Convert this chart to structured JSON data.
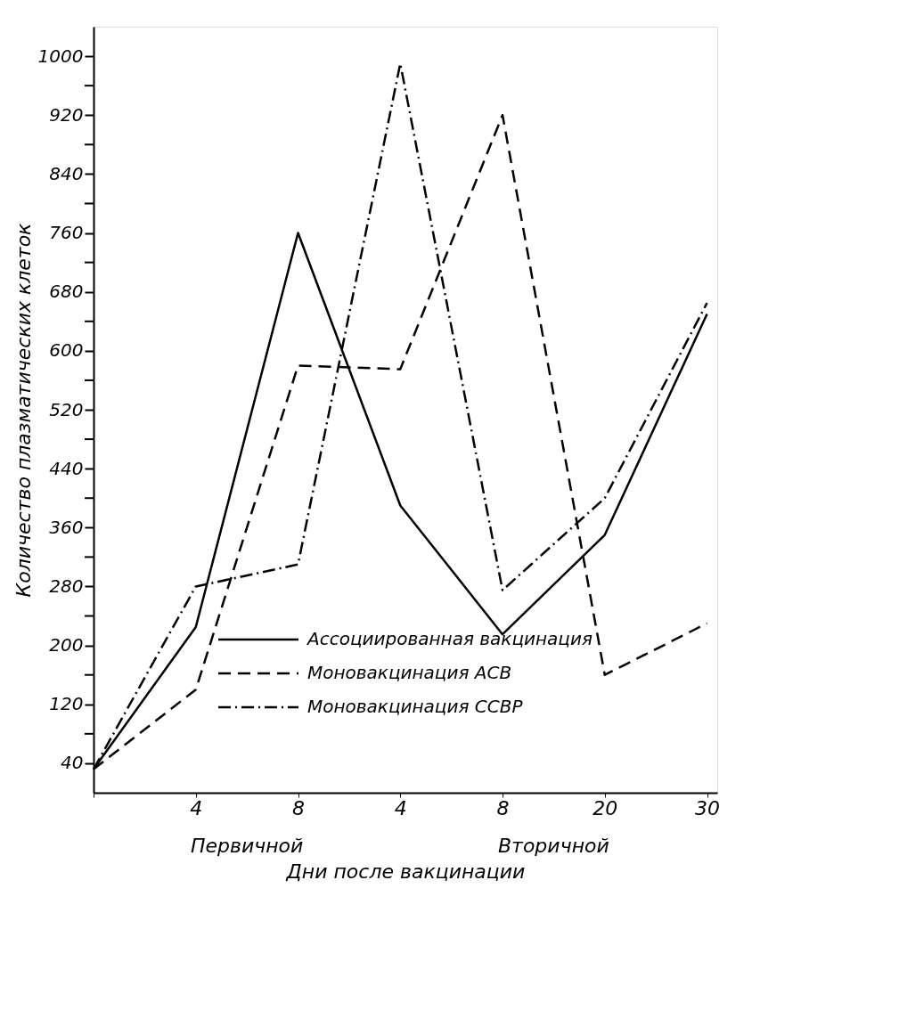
{
  "chart_data": {
    "type": "line",
    "xlabel": "Дни после вакцинации",
    "ylabel": "Количество плазматических клеток",
    "categories": [
      null,
      "4",
      "8",
      "4",
      "8",
      "20",
      "30"
    ],
    "series": [
      {
        "name": "Ассоциированная вакцинация",
        "color": "#000000",
        "line_style": "solid",
        "values": [
          32,
          225,
          760,
          390,
          215,
          350,
          650
        ]
      },
      {
        "name": "Моновакцинация АСВ",
        "color": "#000000",
        "line_style": "dashed",
        "values": [
          32,
          140,
          580,
          575,
          920,
          160,
          230
        ]
      },
      {
        "name": "Моновакцинация ССВР",
        "color": "#000000",
        "line_style": "dashdot",
        "values": [
          32,
          280,
          310,
          990,
          275,
          400,
          665
        ]
      }
    ],
    "ylim": [
      0,
      1040
    ],
    "yticks": [
      40,
      {
        "value": 80,
        "label": null
      },
      120,
      {
        "value": 160,
        "label": null
      },
      200,
      {
        "value": 240,
        "label": null
      },
      280,
      {
        "value": 320,
        "label": null
      },
      360,
      {
        "value": 400,
        "label": null
      },
      440,
      {
        "value": 480,
        "label": null
      },
      520,
      {
        "value": 560,
        "label": null
      },
      600,
      {
        "value": 640,
        "label": null
      },
      680,
      {
        "value": 720,
        "label": null
      },
      760,
      {
        "value": 800,
        "label": null
      },
      840,
      {
        "value": 880,
        "label": null
      },
      920,
      {
        "value": 960,
        "label": null
      },
      1000
    ],
    "annotations": [
      "Первичной",
      "Вторичной"
    ],
    "legend": "bottom",
    "grid": false,
    "marker": "none"
  }
}
